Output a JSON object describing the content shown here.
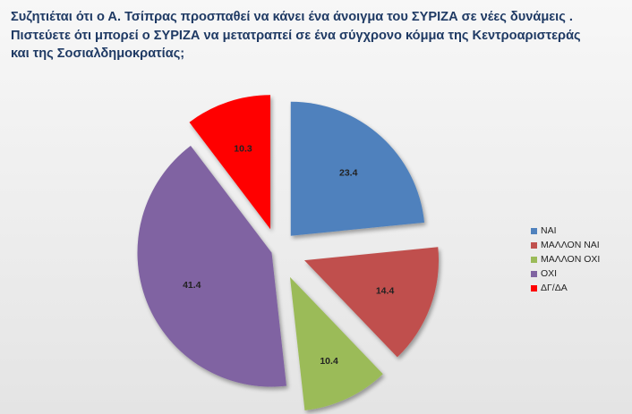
{
  "title_lines": [
    "Συζητιέται ότι ο Α. Τσίπρας προσπαθεί να κάνει ένα άνοιγμα του ΣΥΡΙΖΑ σε νέες δυνάμεις .",
    "Πιστεύετε ότι μπορεί ο ΣΥΡΙΖΑ να μετατραπεί σε ένα σύγχρονο κόμμα της Κεντροαριστεράς",
    "και της Σοσιαλδημοκρατίας;"
  ],
  "chart_data": {
    "type": "pie",
    "exploded": true,
    "legend_position": "right",
    "slices": [
      {
        "label": "ΝΑΙ",
        "value": 23.4,
        "value_label": "23.4",
        "color": "#4f81bd"
      },
      {
        "label": "ΜΑΛΛΟΝ ΝΑΙ",
        "value": 14.4,
        "value_label": "14.4",
        "color": "#c0504d"
      },
      {
        "label": "ΜΑΛΛΟΝ ΟΧΙ",
        "value": 10.4,
        "value_label": "10.4",
        "color": "#9bbb59"
      },
      {
        "label": "ΟΧΙ",
        "value": 41.4,
        "value_label": "41.4",
        "color": "#8064a2"
      },
      {
        "label": "ΔΓ/ΔΑ",
        "value": 10.3,
        "value_label": "10.3",
        "color": "#ff0000"
      }
    ]
  }
}
